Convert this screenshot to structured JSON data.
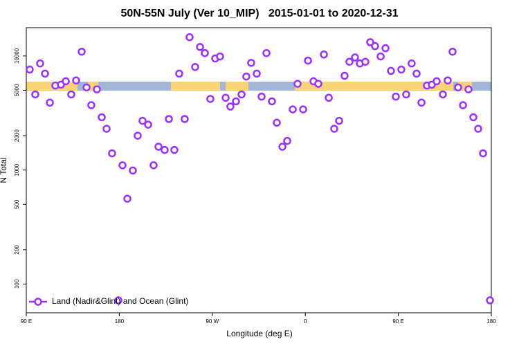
{
  "chart_data": {
    "type": "scatter",
    "title": "50N-55N July (Ver 10_MIP)   2015-01-01 to 2020-12-31",
    "xlabel": "Longitude (deg E)",
    "ylabel": "N Total",
    "x": [
      93.3,
      98.7,
      103.4,
      108.1,
      112.8,
      118.1,
      123.5,
      128.2,
      133.5,
      138.2,
      143.6,
      148.3,
      152.9,
      158.3,
      163.0,
      167.7,
      173.0,
      179.1,
      183.1,
      187.8,
      193.1,
      197.8,
      202.5,
      207.9,
      213.2,
      217.9,
      223.9,
      228.0,
      233.3,
      238.0,
      243.3,
      248.0,
      253.4,
      258.1,
      262.8,
      268.1,
      272.8,
      277.5,
      282.9,
      287.5,
      292.9,
      298.3,
      302.9,
      307.6,
      313.0,
      317.7,
      322.4,
      327.7,
      332.4,
      337.8,
      342.5,
      347.8,
      352.5,
      357.9,
      362.6,
      367.9,
      372.6,
      378.0,
      382.7,
      388.0,
      392.7,
      398.0,
      402.7,
      408.1,
      412.8,
      418.1,
      422.8,
      427.5,
      432.9,
      437.6,
      442.9,
      447.6,
      452.9,
      457.6,
      462.9,
      467.7,
      472.4,
      477.7,
      482.4,
      487.1,
      493.1,
      497.8,
      502.5,
      507.9,
      512.6,
      517.9,
      522.6,
      527.3,
      532.0,
      538.7
    ],
    "series": [
      {
        "name": "Land (Nadir&Glint) and Ocean (Glint)",
        "color": "#9b30ff",
        "values": [
          7600,
          4600,
          8600,
          7000,
          3900,
          5500,
          5600,
          6000,
          4600,
          6100,
          10900,
          5300,
          3700,
          5100,
          2900,
          2300,
          1400,
          72,
          1100,
          560,
          990,
          2000,
          2700,
          2500,
          1100,
          1600,
          1500,
          2800,
          1500,
          7000,
          2800,
          14600,
          8000,
          12000,
          10600,
          4200,
          9500,
          9900,
          4300,
          3600,
          4000,
          4600,
          6600,
          8700,
          7000,
          4400,
          10600,
          4000,
          2600,
          1600,
          1800,
          3400,
          5700,
          3400,
          9100,
          6000,
          5700,
          10300,
          4300,
          2300,
          2700,
          6700,
          8900,
          9700,
          8600,
          8900,
          13200,
          12200,
          9900,
          11700,
          7400,
          4400,
          7600,
          4600,
          8600,
          7000,
          3900,
          5500,
          5600,
          6000,
          4600,
          6100,
          10900,
          5300,
          3700,
          5100,
          2900,
          2300,
          1400,
          72
        ]
      }
    ],
    "xlim": [
      90,
      540
    ],
    "ylim": [
      56,
      17700
    ],
    "log_y": true,
    "legend": "lower left",
    "xticks": [
      {
        "value": 90,
        "label": "90 E"
      },
      180,
      {
        "value": 270,
        "label": "90 W"
      },
      {
        "value": 360,
        "label": "0"
      },
      {
        "value": 450,
        "label": "90 E"
      },
      {
        "value": 540,
        "label": "180"
      }
    ],
    "yticks": [
      100,
      200,
      500,
      1000,
      2000,
      5000,
      10000
    ]
  }
}
